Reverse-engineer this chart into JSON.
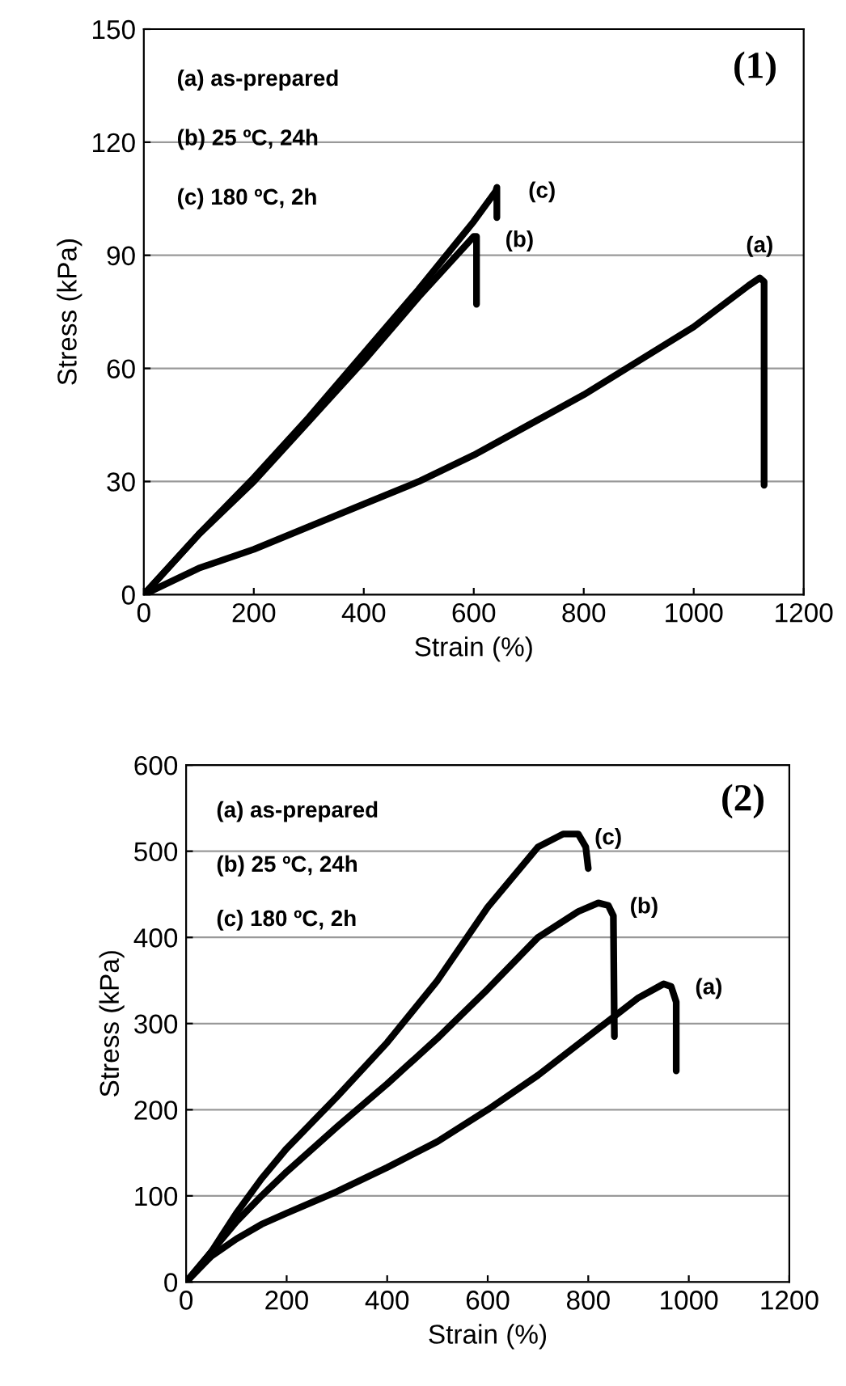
{
  "chart_data": [
    {
      "type": "line",
      "xlabel": "Strain (%)",
      "ylabel": "Stress (kPa)",
      "xlim": [
        0,
        1200
      ],
      "ylim": [
        0,
        150
      ],
      "xticks": [
        0,
        200,
        400,
        600,
        800,
        1000,
        1200
      ],
      "yticks": [
        0,
        30,
        60,
        90,
        120,
        150
      ],
      "grid": "y",
      "legend": false,
      "marker": "none",
      "line_style": "solid",
      "annotations": [
        "(1)",
        "(a) as-prepared",
        "(b) 25 ºC, 24h",
        "(c) 180 ºC, 2h"
      ],
      "series": [
        {
          "name": "(a)",
          "color": "#000000",
          "x": [
            0,
            100,
            200,
            300,
            400,
            500,
            600,
            700,
            800,
            900,
            1000,
            1100,
            1120,
            1128,
            1128
          ],
          "values": [
            0,
            7,
            12,
            18,
            24,
            30,
            37,
            45,
            53,
            62,
            71,
            82,
            84,
            83,
            29
          ]
        },
        {
          "name": "(b)",
          "color": "#000000",
          "x": [
            0,
            100,
            200,
            300,
            400,
            500,
            550,
            600,
            605,
            605
          ],
          "values": [
            0,
            16,
            30,
            46,
            62,
            79,
            87,
            95,
            95,
            77
          ]
        },
        {
          "name": "(c)",
          "color": "#000000",
          "x": [
            0,
            100,
            200,
            300,
            400,
            500,
            600,
            640,
            642,
            642
          ],
          "values": [
            0,
            16,
            31,
            47,
            64,
            81,
            99,
            107,
            108,
            100
          ]
        }
      ]
    },
    {
      "type": "line",
      "xlabel": "Strain (%)",
      "ylabel": "Stress (kPa)",
      "xlim": [
        0,
        1200
      ],
      "ylim": [
        0,
        600
      ],
      "xticks": [
        0,
        200,
        400,
        600,
        800,
        1000,
        1200
      ],
      "yticks": [
        0,
        100,
        200,
        300,
        400,
        500,
        600
      ],
      "grid": "y",
      "legend": false,
      "marker": "none",
      "line_style": "solid",
      "annotations": [
        "(2)",
        "(a) as-prepared",
        "(b) 25 ºC, 24h",
        "(c) 180 ºC, 2h"
      ],
      "series": [
        {
          "name": "(a)",
          "color": "#000000",
          "x": [
            0,
            50,
            100,
            150,
            200,
            300,
            400,
            500,
            600,
            700,
            800,
            900,
            950,
            965,
            975,
            975
          ],
          "values": [
            0,
            30,
            50,
            67,
            80,
            105,
            133,
            163,
            200,
            240,
            285,
            330,
            346,
            343,
            325,
            245
          ]
        },
        {
          "name": "(b)",
          "color": "#000000",
          "x": [
            0,
            50,
            100,
            150,
            200,
            300,
            400,
            500,
            600,
            700,
            780,
            820,
            840,
            850,
            852
          ],
          "values": [
            0,
            35,
            70,
            100,
            128,
            180,
            230,
            283,
            340,
            400,
            430,
            440,
            437,
            425,
            285
          ]
        },
        {
          "name": "(c)",
          "color": "#000000",
          "x": [
            0,
            50,
            100,
            150,
            200,
            300,
            400,
            500,
            600,
            700,
            750,
            780,
            795,
            800
          ],
          "values": [
            0,
            35,
            80,
            120,
            155,
            215,
            278,
            350,
            435,
            505,
            520,
            520,
            505,
            480
          ]
        }
      ]
    }
  ]
}
